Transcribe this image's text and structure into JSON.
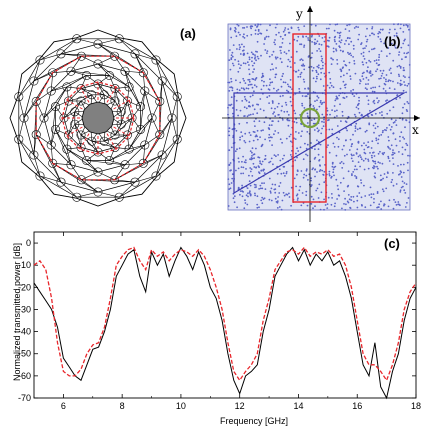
{
  "panels": {
    "a": {
      "label": "(a)"
    },
    "b": {
      "label": "(b)",
      "x_axis": "x",
      "y_axis": "y"
    },
    "c": {
      "label": "(c)"
    }
  },
  "colors": {
    "tiling": "#000000",
    "highlight": "#e8262b",
    "center_fill": "#808080",
    "dots": "#5a64c8",
    "path": "#3a3ab0",
    "ring": "#7aa33a",
    "black_trace": "#000000",
    "red_trace": "#e8262b"
  },
  "chart_data": {
    "type": "line",
    "title": "",
    "xlabel": "Frequency [GHz]",
    "ylabel": "Normalized transmitted power  [dB]",
    "xlim": [
      5,
      18
    ],
    "ylim": [
      -70,
      5
    ],
    "xticks": [
      6,
      8,
      10,
      12,
      14,
      16,
      18
    ],
    "yticks": [
      0,
      -10,
      -20,
      -30,
      -40,
      -50,
      -60,
      -70
    ],
    "series": [
      {
        "style": "solid",
        "color": "#000000",
        "x": [
          5.0,
          5.2,
          5.4,
          5.6,
          5.8,
          6.0,
          6.2,
          6.4,
          6.6,
          6.8,
          7.0,
          7.2,
          7.4,
          7.6,
          7.8,
          8.0,
          8.2,
          8.4,
          8.6,
          8.8,
          9.0,
          9.2,
          9.4,
          9.6,
          9.8,
          10.0,
          10.2,
          10.4,
          10.6,
          10.8,
          11.0,
          11.2,
          11.4,
          11.6,
          11.8,
          12.0,
          12.2,
          12.4,
          12.6,
          12.8,
          13.0,
          13.2,
          13.4,
          13.6,
          13.8,
          14.0,
          14.2,
          14.4,
          14.6,
          14.8,
          15.0,
          15.2,
          15.4,
          15.6,
          15.8,
          16.0,
          16.2,
          16.4,
          16.6,
          16.8,
          17.0,
          17.2,
          17.4,
          17.6,
          17.8,
          18.0
        ],
        "y": [
          -18,
          -22,
          -26,
          -30,
          -38,
          -52,
          -56,
          -60,
          -62,
          -55,
          -48,
          -47,
          -40,
          -30,
          -15,
          -10,
          -5,
          -3,
          -15,
          -22,
          -4,
          -10,
          -5,
          -15,
          -8,
          -2,
          -6,
          -12,
          -4,
          -10,
          -20,
          -25,
          -35,
          -50,
          -62,
          -68,
          -60,
          -58,
          -55,
          -40,
          -30,
          -15,
          -10,
          -5,
          -2,
          -8,
          -3,
          -10,
          -5,
          -8,
          -4,
          -10,
          -8,
          -15,
          -25,
          -40,
          -55,
          -60,
          -45,
          -65,
          -70,
          -58,
          -50,
          -35,
          -25,
          -20
        ]
      },
      {
        "style": "dashed",
        "color": "#e8262b",
        "x": [
          5.0,
          5.2,
          5.4,
          5.6,
          5.8,
          6.0,
          6.2,
          6.4,
          6.6,
          6.8,
          7.0,
          7.2,
          7.4,
          7.6,
          7.8,
          8.0,
          8.2,
          8.4,
          8.6,
          8.8,
          9.0,
          9.2,
          9.4,
          9.6,
          9.8,
          10.0,
          10.2,
          10.4,
          10.6,
          10.8,
          11.0,
          11.2,
          11.4,
          11.6,
          11.8,
          12.0,
          12.2,
          12.4,
          12.6,
          12.8,
          13.0,
          13.2,
          13.4,
          13.6,
          13.8,
          14.0,
          14.2,
          14.4,
          14.6,
          14.8,
          15.0,
          15.2,
          15.4,
          15.6,
          15.8,
          16.0,
          16.2,
          16.4,
          16.6,
          16.8,
          17.0,
          17.2,
          17.4,
          17.6,
          17.8,
          18.0
        ],
        "y": [
          -10,
          -8,
          -12,
          -25,
          -45,
          -58,
          -60,
          -60,
          -57,
          -50,
          -46,
          -45,
          -38,
          -25,
          -10,
          -6,
          -3,
          -2,
          -8,
          -12,
          -3,
          -6,
          -4,
          -8,
          -5,
          -3,
          -4,
          -6,
          -3,
          -6,
          -12,
          -20,
          -30,
          -45,
          -58,
          -62,
          -58,
          -55,
          -50,
          -35,
          -25,
          -12,
          -8,
          -4,
          -3,
          -5,
          -2,
          -6,
          -4,
          -5,
          -3,
          -6,
          -5,
          -10,
          -20,
          -35,
          -50,
          -55,
          -55,
          -58,
          -62,
          -55,
          -45,
          -30,
          -22,
          -18
        ]
      }
    ]
  }
}
